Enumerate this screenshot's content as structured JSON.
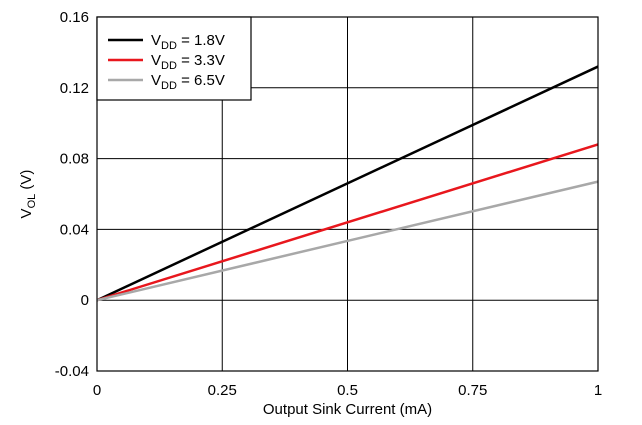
{
  "chart_data": {
    "type": "line",
    "title": "",
    "xlabel": "Output Sink Current (mA)",
    "ylabel": {
      "main": "V",
      "sub": "OL",
      "suffix": " (V)"
    },
    "xlim": [
      0,
      1
    ],
    "ylim": [
      -0.04,
      0.16
    ],
    "x_ticks": [
      0,
      0.25,
      0.5,
      0.75,
      1
    ],
    "x_tick_labels": [
      "0",
      "0.25",
      "0.5",
      "0.75",
      "1"
    ],
    "y_ticks": [
      -0.04,
      0,
      0.04,
      0.08,
      0.12,
      0.16
    ],
    "y_tick_labels": [
      "-0.04",
      "0",
      "0.04",
      "0.08",
      "0.12",
      "0.16"
    ],
    "grid": true,
    "legend_position": "top-left",
    "series": [
      {
        "label_main": "V",
        "label_sub": "DD",
        "label_suffix": " = 1.8V",
        "color": "#000000",
        "x": [
          0,
          1
        ],
        "y": [
          0,
          0.132
        ]
      },
      {
        "label_main": "V",
        "label_sub": "DD",
        "label_suffix": " = 3.3V",
        "color": "#e8171d",
        "x": [
          0,
          1
        ],
        "y": [
          0,
          0.088
        ]
      },
      {
        "label_main": "V",
        "label_sub": "DD",
        "label_suffix": " = 6.5V",
        "color": "#a8a8a8",
        "x": [
          0,
          1
        ],
        "y": [
          0,
          0.067
        ]
      }
    ]
  }
}
